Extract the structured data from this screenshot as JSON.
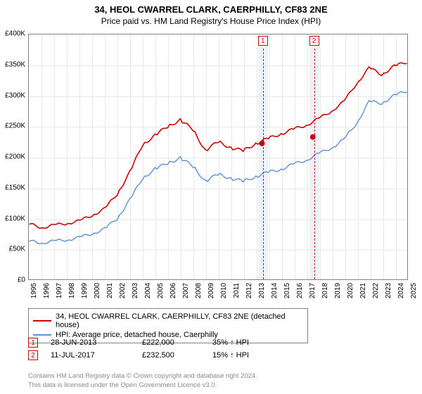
{
  "chart": {
    "type": "line",
    "title": "34, HEOL CWARREL CLARK, CAERPHILLY, CF83 2NE",
    "subtitle": "Price paid vs. HM Land Registry's House Price Index (HPI)",
    "background_color": "#ffffff",
    "grid_color": "#e8e8e8",
    "border_color": "#808080",
    "title_fontsize": 13,
    "subtitle_fontsize": 12,
    "tick_fontsize": 10,
    "y": {
      "min": 0,
      "max": 400000,
      "step": 50000,
      "labels": [
        "£0",
        "£50K",
        "£100K",
        "£150K",
        "£200K",
        "£250K",
        "£300K",
        "£350K",
        "£400K"
      ]
    },
    "x": {
      "min": 1995,
      "max": 2025,
      "labels": [
        "1995",
        "1996",
        "1997",
        "1998",
        "1999",
        "2000",
        "2001",
        "2002",
        "2003",
        "2004",
        "2005",
        "2006",
        "2007",
        "2008",
        "2009",
        "2010",
        "2011",
        "2012",
        "2013",
        "2014",
        "2015",
        "2016",
        "2017",
        "2018",
        "2019",
        "2020",
        "2021",
        "2022",
        "2023",
        "2024",
        "2025"
      ]
    },
    "series": [
      {
        "name": "property",
        "label": "34, HEOL CWARREL CLARK, CAERPHILLY, CF83 2NE (detached house)",
        "color": "#cc0000",
        "line_width": 1.6,
        "data": [
          [
            1995,
            90000
          ],
          [
            1996,
            85000
          ],
          [
            1997,
            88000
          ],
          [
            1998,
            92000
          ],
          [
            1999,
            95000
          ],
          [
            2000,
            105000
          ],
          [
            2001,
            115000
          ],
          [
            2002,
            140000
          ],
          [
            2003,
            175000
          ],
          [
            2004,
            220000
          ],
          [
            2005,
            235000
          ],
          [
            2006,
            250000
          ],
          [
            2007,
            260000
          ],
          [
            2008,
            245000
          ],
          [
            2009,
            210000
          ],
          [
            2010,
            225000
          ],
          [
            2011,
            215000
          ],
          [
            2012,
            210000
          ],
          [
            2013,
            222000
          ],
          [
            2014,
            230000
          ],
          [
            2015,
            238000
          ],
          [
            2016,
            245000
          ],
          [
            2017,
            252000
          ],
          [
            2018,
            262000
          ],
          [
            2019,
            275000
          ],
          [
            2020,
            290000
          ],
          [
            2021,
            320000
          ],
          [
            2022,
            345000
          ],
          [
            2023,
            335000
          ],
          [
            2024,
            348000
          ],
          [
            2025,
            355000
          ]
        ]
      },
      {
        "name": "hpi",
        "label": "HPI: Average price, detached house, Caerphilly",
        "color": "#5b8fd6",
        "line_width": 1.4,
        "data": [
          [
            1995,
            62000
          ],
          [
            1996,
            60000
          ],
          [
            1997,
            62000
          ],
          [
            1998,
            65000
          ],
          [
            1999,
            68000
          ],
          [
            2000,
            75000
          ],
          [
            2001,
            82000
          ],
          [
            2002,
            100000
          ],
          [
            2003,
            130000
          ],
          [
            2004,
            165000
          ],
          [
            2005,
            180000
          ],
          [
            2006,
            190000
          ],
          [
            2007,
            198000
          ],
          [
            2008,
            185000
          ],
          [
            2009,
            160000
          ],
          [
            2010,
            172000
          ],
          [
            2011,
            165000
          ],
          [
            2012,
            160000
          ],
          [
            2013,
            168000
          ],
          [
            2014,
            175000
          ],
          [
            2015,
            180000
          ],
          [
            2016,
            188000
          ],
          [
            2017,
            195000
          ],
          [
            2018,
            205000
          ],
          [
            2019,
            215000
          ],
          [
            2020,
            228000
          ],
          [
            2021,
            255000
          ],
          [
            2022,
            290000
          ],
          [
            2023,
            288000
          ],
          [
            2024,
            300000
          ],
          [
            2025,
            308000
          ]
        ]
      }
    ],
    "sales": [
      {
        "num": "1",
        "date_label": "28-JUN-2013",
        "year": 2013.49,
        "price": 222000,
        "price_label": "£222,000",
        "pct_label": "35% ↑ HPI"
      },
      {
        "num": "2",
        "date_label": "11-JUL-2017",
        "year": 2017.53,
        "price": 232500,
        "price_label": "£232,500",
        "pct_label": "15% ↑ HPI"
      }
    ],
    "sale_band_color": "#eef2fb",
    "sale_marker_color": "#cc0000"
  },
  "attribution": {
    "line1": "Contains HM Land Registry data © Crown copyright and database right 2024.",
    "line2": "This data is licensed under the Open Government Licence v3.0."
  }
}
